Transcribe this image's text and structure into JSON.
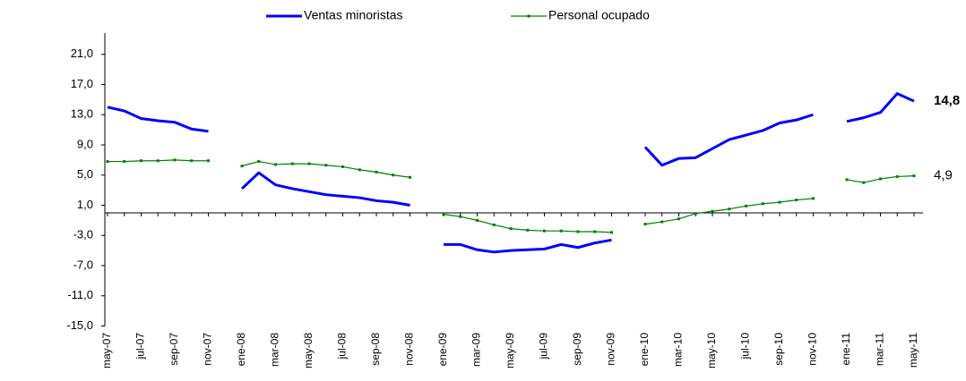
{
  "chart_data": {
    "type": "line",
    "categories": [
      "may-07",
      null,
      "jul-07",
      null,
      "sep-07",
      null,
      "nov-07",
      null,
      "ene-08",
      null,
      "mar-08",
      null,
      "may-08",
      null,
      "jul-08",
      null,
      "sep-08",
      null,
      "nov-08",
      null,
      "ene-09",
      null,
      "mar-09",
      null,
      "may-09",
      null,
      "jul-09",
      null,
      "sep-09",
      null,
      "nov-09",
      null,
      "ene-10",
      null,
      "mar-10",
      null,
      "may-10",
      null,
      "jul-10",
      null,
      "sep-10",
      null,
      "nov-10",
      null,
      "ene-11",
      null,
      "mar-11",
      null,
      "may-11"
    ],
    "series": [
      {
        "name": "Ventas minoristas",
        "color": "#0000ff",
        "end_label": "14,8",
        "values": [
          14.0,
          13.5,
          12.5,
          12.2,
          12.0,
          11.1,
          10.8,
          null,
          3.2,
          5.3,
          3.7,
          3.2,
          2.8,
          2.4,
          2.2,
          2.0,
          1.6,
          1.4,
          1.0,
          null,
          -4.2,
          -4.2,
          -4.9,
          -5.2,
          -5.0,
          -4.9,
          -4.8,
          -4.2,
          -4.6,
          -4.0,
          -3.6,
          null,
          8.7,
          6.3,
          7.2,
          7.3,
          8.5,
          9.7,
          10.3,
          10.9,
          11.9,
          12.3,
          13.0,
          null,
          12.1,
          12.6,
          13.3,
          15.8,
          14.8
        ]
      },
      {
        "name": "Personal ocupado",
        "color": "#008000",
        "label_color": "#008080",
        "end_label": "4,9",
        "values": [
          6.8,
          6.8,
          6.9,
          6.9,
          7.0,
          6.9,
          6.9,
          null,
          6.2,
          6.8,
          6.4,
          6.5,
          6.5,
          6.3,
          6.1,
          5.7,
          5.4,
          5.0,
          4.7,
          null,
          -0.2,
          -0.5,
          -1.0,
          -1.6,
          -2.1,
          -2.3,
          -2.4,
          -2.4,
          -2.5,
          -2.5,
          -2.6,
          null,
          -1.5,
          -1.2,
          -0.8,
          -0.1,
          0.2,
          0.5,
          0.9,
          1.2,
          1.4,
          1.7,
          1.9,
          null,
          4.4,
          4.0,
          4.5,
          4.8,
          4.9
        ]
      }
    ],
    "ylim": [
      -15,
      25
    ],
    "yticks": [
      {
        "value": -15,
        "label": "-15,0"
      },
      {
        "value": -11,
        "label": "-11,0"
      },
      {
        "value": -7,
        "label": "-7,0"
      },
      {
        "value": -3,
        "label": "-3,0"
      },
      {
        "value": 1,
        "label": "1,0"
      },
      {
        "value": 5,
        "label": "5,0"
      },
      {
        "value": 9,
        "label": "9,0"
      },
      {
        "value": 13,
        "label": "13,0"
      },
      {
        "value": 17,
        "label": "17,0"
      },
      {
        "value": 21,
        "label": "21,0"
      }
    ],
    "grid": false,
    "legend": "top"
  }
}
